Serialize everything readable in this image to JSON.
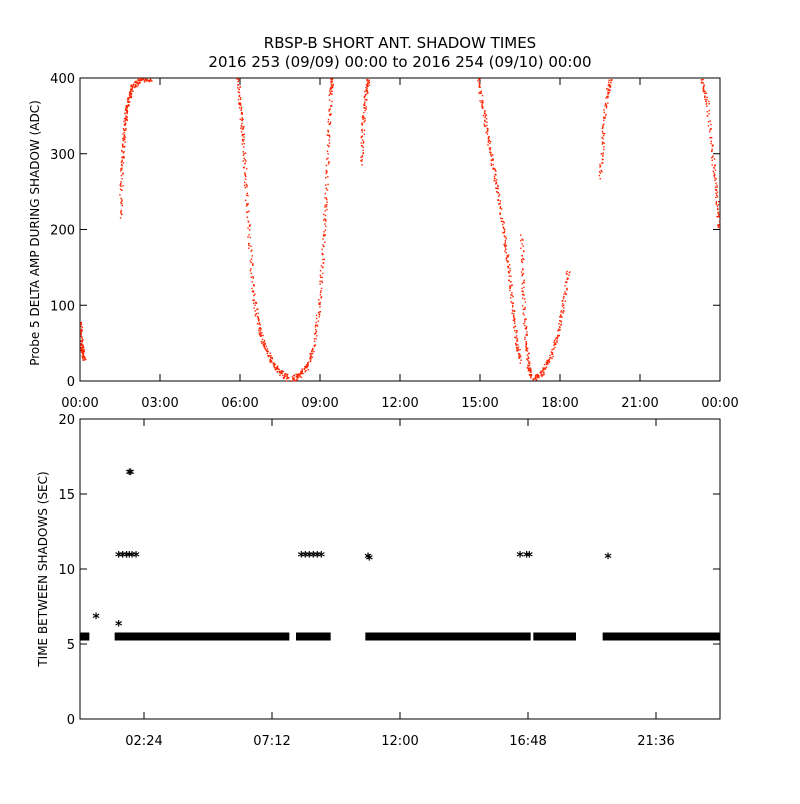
{
  "title_line1": "RBSP-B SHORT ANT. SHADOW TIMES",
  "title_line2": "2016 253 (09/09) 00:00 to 2016 254 (09/10) 00:00",
  "colors": {
    "red": "#ff2200",
    "black": "#000000"
  },
  "chart_data": [
    {
      "type": "scatter",
      "ylabel": "Probe 5 DELTA AMP DURING SHADOW (ADC)",
      "xlabel": "",
      "x_unit": "hours since 2016-09-09 00:00",
      "xlim": [
        0,
        24
      ],
      "ylim": [
        0,
        400
      ],
      "x_tick_values": [
        0,
        3,
        6,
        9,
        12,
        15,
        18,
        21,
        24
      ],
      "x_tick_labels": [
        "00:00",
        "03:00",
        "06:00",
        "09:00",
        "12:00",
        "15:00",
        "18:00",
        "21:00",
        "00:00"
      ],
      "y_tick_values": [
        0,
        100,
        200,
        300,
        400
      ],
      "y_tick_labels": [
        "0",
        "100",
        "200",
        "300",
        "400"
      ],
      "grid": false,
      "series": [
        {
          "color": "#ff2200",
          "segments": [
            [
              [
                0.0,
                80
              ],
              [
                0.03,
                55
              ],
              [
                0.08,
                40
              ],
              [
                0.15,
                30
              ]
            ],
            [
              [
                1.5,
                220
              ],
              [
                1.55,
                280
              ],
              [
                1.62,
                320
              ],
              [
                1.7,
                350
              ],
              [
                1.8,
                370
              ],
              [
                1.9,
                385
              ],
              [
                2.1,
                395
              ],
              [
                2.4,
                400
              ],
              [
                2.7,
                400
              ]
            ],
            [
              [
                5.9,
                400
              ],
              [
                6.0,
                360
              ],
              [
                6.1,
                320
              ],
              [
                6.2,
                260
              ],
              [
                6.35,
                180
              ],
              [
                6.5,
                110
              ],
              [
                6.7,
                70
              ],
              [
                6.9,
                45
              ],
              [
                7.2,
                25
              ],
              [
                7.5,
                12
              ],
              [
                7.8,
                3
              ]
            ],
            [
              [
                7.95,
                2
              ],
              [
                8.2,
                8
              ],
              [
                8.5,
                20
              ],
              [
                8.75,
                45
              ],
              [
                8.95,
                100
              ],
              [
                9.1,
                170
              ],
              [
                9.2,
                240
              ],
              [
                9.3,
                320
              ],
              [
                9.38,
                380
              ],
              [
                9.45,
                400
              ]
            ],
            [
              [
                10.55,
                290
              ],
              [
                10.6,
                340
              ],
              [
                10.7,
                380
              ],
              [
                10.8,
                400
              ]
            ],
            [
              [
                14.9,
                400
              ],
              [
                15.1,
                360
              ],
              [
                15.3,
                320
              ],
              [
                15.5,
                280
              ],
              [
                15.7,
                240
              ],
              [
                15.9,
                190
              ],
              [
                16.05,
                150
              ],
              [
                16.2,
                100
              ],
              [
                16.35,
                55
              ],
              [
                16.5,
                25
              ]
            ],
            [
              [
                16.55,
                190
              ],
              [
                16.6,
                120
              ],
              [
                16.7,
                60
              ],
              [
                16.8,
                20
              ],
              [
                16.9,
                8
              ]
            ],
            [
              [
                17.0,
                4
              ],
              [
                17.3,
                12
              ],
              [
                17.6,
                30
              ],
              [
                17.9,
                60
              ],
              [
                18.1,
                100
              ],
              [
                18.3,
                150
              ]
            ],
            [
              [
                19.5,
                270
              ],
              [
                19.6,
                330
              ],
              [
                19.75,
                380
              ],
              [
                19.9,
                400
              ]
            ],
            [
              [
                23.3,
                400
              ],
              [
                23.5,
                370
              ],
              [
                23.7,
                300
              ],
              [
                23.85,
                250
              ],
              [
                23.95,
                200
              ]
            ]
          ]
        }
      ]
    },
    {
      "type": "scatter",
      "ylabel": "TIME BETWEEN SHADOWS (SEC)",
      "xlabel": "",
      "x_unit": "hours since 2016-09-09 00:00",
      "xlim": [
        0,
        24
      ],
      "ylim": [
        0,
        20
      ],
      "x_tick_values": [
        2.4,
        7.2,
        12.0,
        16.8,
        21.6
      ],
      "x_tick_labels": [
        "02:24",
        "07:12",
        "12:00",
        "16:48",
        "21:36"
      ],
      "y_tick_values": [
        0,
        5,
        10,
        15,
        20
      ],
      "y_tick_labels": [
        "0",
        "5",
        "10",
        "15",
        "20"
      ],
      "grid": false,
      "series": [
        {
          "color": "#000000",
          "baseline_value": 5.5,
          "baseline_runs": [
            [
              0.0,
              0.35
            ],
            [
              1.3,
              7.85
            ],
            [
              8.1,
              9.4
            ],
            [
              10.7,
              16.9
            ],
            [
              17.0,
              18.6
            ],
            [
              19.6,
              24.0
            ]
          ],
          "points": [
            [
              0.6,
              6.8
            ],
            [
              1.45,
              6.3
            ],
            [
              1.85,
              16.4
            ],
            [
              1.9,
              16.4
            ],
            [
              1.45,
              10.9
            ],
            [
              1.6,
              10.9
            ],
            [
              1.75,
              10.9
            ],
            [
              1.85,
              10.9
            ],
            [
              1.95,
              10.9
            ],
            [
              2.1,
              10.9
            ],
            [
              8.3,
              10.9
            ],
            [
              8.45,
              10.9
            ],
            [
              8.6,
              10.9
            ],
            [
              8.75,
              10.9
            ],
            [
              8.9,
              10.9
            ],
            [
              9.05,
              10.9
            ],
            [
              10.8,
              10.8
            ],
            [
              10.85,
              10.7
            ],
            [
              16.5,
              10.9
            ],
            [
              16.75,
              10.9
            ],
            [
              16.85,
              10.9
            ],
            [
              19.8,
              10.8
            ]
          ]
        }
      ]
    }
  ]
}
